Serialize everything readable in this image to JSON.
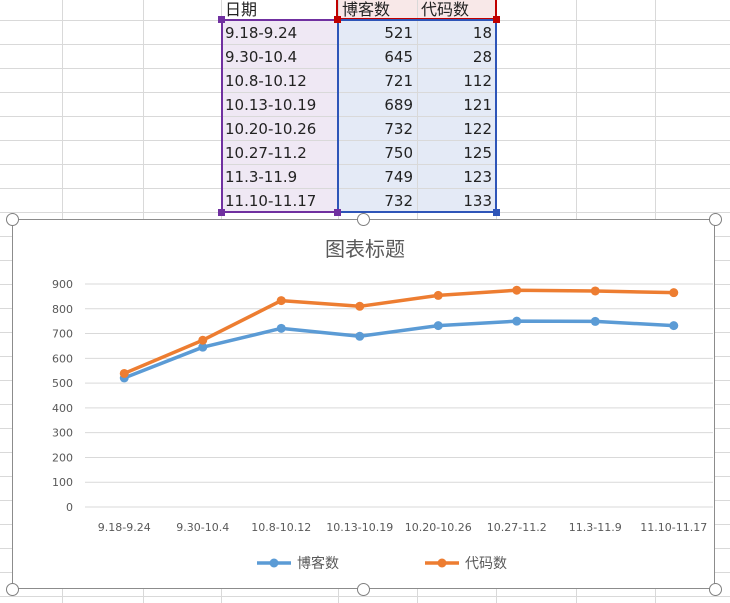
{
  "table": {
    "headers": [
      "日期",
      "博客数",
      "代码数"
    ],
    "rows": [
      {
        "date": "9.18-9.24",
        "blogs": "521",
        "code": "18"
      },
      {
        "date": "9.30-10.4",
        "blogs": "645",
        "code": "28"
      },
      {
        "date": "10.8-10.12",
        "blogs": "721",
        "code": "112"
      },
      {
        "date": "10.13-10.19",
        "blogs": "689",
        "code": "121"
      },
      {
        "date": "10.20-10.26",
        "blogs": "732",
        "code": "122"
      },
      {
        "date": "10.27-11.2",
        "blogs": "750",
        "code": "125"
      },
      {
        "date": "11.3-11.9",
        "blogs": "749",
        "code": "123"
      },
      {
        "date": "11.10-11.17",
        "blogs": "732",
        "code": "133"
      }
    ]
  },
  "colors": {
    "blog_series": "#5b9bd5",
    "code_series": "#ed7d31",
    "range_date": "#7030a0",
    "range_blogs": "#c00000",
    "range_code": "#2e55b8"
  },
  "chart_data": {
    "type": "line",
    "stacked": true,
    "title": "图表标题",
    "categories": [
      "9.18-9.24",
      "9.30-10.4",
      "10.8-10.12",
      "10.13-10.19",
      "10.20-10.26",
      "10.27-11.2",
      "11.3-11.9",
      "11.10-11.17"
    ],
    "series": [
      {
        "name": "博客数",
        "values": [
          521,
          645,
          721,
          689,
          732,
          750,
          749,
          732
        ]
      },
      {
        "name": "代码数",
        "values": [
          18,
          28,
          112,
          121,
          122,
          125,
          123,
          133
        ]
      }
    ],
    "ylim": [
      0,
      900
    ],
    "yticks": [
      "0",
      "100",
      "200",
      "300",
      "400",
      "500",
      "600",
      "700",
      "800",
      "900"
    ],
    "grid": true,
    "legend": "bottom"
  }
}
